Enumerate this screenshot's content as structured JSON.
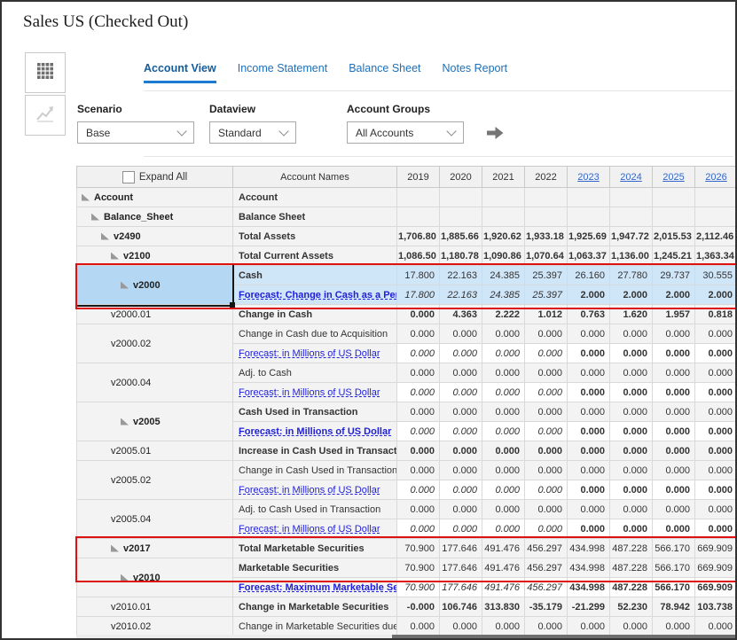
{
  "title": "Sales US (Checked Out)",
  "sidebar": {
    "items": [
      {
        "icon": "grid-view-icon",
        "active": true
      },
      {
        "icon": "chart-view-icon",
        "active": false
      }
    ]
  },
  "tabs": [
    {
      "label": "Account View",
      "active": true
    },
    {
      "label": "Income Statement",
      "active": false
    },
    {
      "label": "Balance Sheet",
      "active": false
    },
    {
      "label": "Notes Report",
      "active": false
    }
  ],
  "filters": {
    "scenario": {
      "label": "Scenario",
      "value": "Base"
    },
    "dataview": {
      "label": "Dataview",
      "value": "Standard"
    },
    "account_groups": {
      "label": "Account Groups",
      "value": "All Accounts"
    }
  },
  "table": {
    "expand_all_label": "Expand All",
    "account_names_header": "Account Names",
    "years": [
      {
        "label": "2019",
        "link": false
      },
      {
        "label": "2020",
        "link": false
      },
      {
        "label": "2021",
        "link": false
      },
      {
        "label": "2022",
        "link": false
      },
      {
        "label": "2023",
        "link": true
      },
      {
        "label": "2024",
        "link": true
      },
      {
        "label": "2025",
        "link": true
      },
      {
        "label": "2026",
        "link": true
      }
    ],
    "rows": [
      {
        "id": "Account",
        "name": "Account",
        "indent": 0,
        "expandable": true,
        "id_bold": true,
        "name_bold": true,
        "values": null,
        "styles": null
      },
      {
        "id": "Balance_Sheet",
        "name": "Balance Sheet",
        "indent": 1,
        "expandable": true,
        "id_bold": true,
        "name_bold": true,
        "values": null,
        "styles": null
      },
      {
        "id": "v2490",
        "name": "Total Assets",
        "indent": 2,
        "expandable": true,
        "id_bold": true,
        "name_bold": true,
        "values": [
          "1,706.80",
          "1,885.66",
          "1,920.62",
          "1,933.18",
          "1,925.69",
          "1,947.72",
          "2,015.53",
          "2,112.46"
        ],
        "styles": "bbbbbbbb"
      },
      {
        "id": "v2100",
        "name": "Total Current Assets",
        "indent": 3,
        "expandable": true,
        "id_bold": true,
        "name_bold": true,
        "values": [
          "1,086.50",
          "1,180.78",
          "1,090.86",
          "1,070.64",
          "1,063.37",
          "1,136.00",
          "1,245.21",
          "1,363.34"
        ],
        "styles": "bbbbbbbb"
      },
      {
        "id": "v2000",
        "name": "Cash",
        "indent": 4,
        "expandable": true,
        "id_bold": true,
        "name_bold": true,
        "selected": true,
        "tree_span": 2,
        "values": [
          "17.800",
          "22.163",
          "24.385",
          "25.397",
          "26.160",
          "27.780",
          "29.737",
          "30.555"
        ],
        "styles": "gggggggg"
      },
      {
        "name": "Forecast: Change in Cash as a Perce",
        "link": true,
        "name_bold": true,
        "forecast": true,
        "selected": true,
        "skip_tree": true,
        "values": [
          "17.800",
          "22.163",
          "24.385",
          "25.397",
          "2.000",
          "2.000",
          "2.000",
          "2.000"
        ],
        "styles": "GGGGbbbb"
      },
      {
        "id": "v2000.01",
        "name": "Change in Cash",
        "indent": 3,
        "expandable": false,
        "id_bold": false,
        "name_bold": true,
        "values": [
          "0.000",
          "4.363",
          "2.222",
          "1.012",
          "0.763",
          "1.620",
          "1.957",
          "0.818"
        ],
        "styles": "bbbbbbbb"
      },
      {
        "id": "v2000.02",
        "name": "Change in Cash due to Acquisition",
        "indent": 3,
        "expandable": false,
        "tree_span": 2,
        "values": [
          "0.000",
          "0.000",
          "0.000",
          "0.000",
          "0.000",
          "0.000",
          "0.000",
          "0.000"
        ],
        "styles": "gggggggg"
      },
      {
        "name": "Forecast: in Millions of US Dollar",
        "link": true,
        "forecast": true,
        "skip_tree": true,
        "values": [
          "0.000",
          "0.000",
          "0.000",
          "0.000",
          "0.000",
          "0.000",
          "0.000",
          "0.000"
        ],
        "styles": "GGGGbbbb"
      },
      {
        "id": "v2000.04",
        "name": "Adj. to Cash",
        "indent": 3,
        "expandable": false,
        "tree_span": 2,
        "values": [
          "0.000",
          "0.000",
          "0.000",
          "0.000",
          "0.000",
          "0.000",
          "0.000",
          "0.000"
        ],
        "styles": "gggggggg"
      },
      {
        "name": "Forecast: in Millions of US Dollar",
        "link": true,
        "forecast": true,
        "skip_tree": true,
        "values": [
          "0.000",
          "0.000",
          "0.000",
          "0.000",
          "0.000",
          "0.000",
          "0.000",
          "0.000"
        ],
        "styles": "GGGGbbbb"
      },
      {
        "id": "v2005",
        "name": "Cash Used in Transaction",
        "indent": 4,
        "expandable": true,
        "id_bold": true,
        "name_bold": true,
        "tree_span": 2,
        "values": [
          "0.000",
          "0.000",
          "0.000",
          "0.000",
          "0.000",
          "0.000",
          "0.000",
          "0.000"
        ],
        "styles": "gggggggg"
      },
      {
        "name": "Forecast: in Millions of US Dollar",
        "link": true,
        "name_bold": true,
        "forecast": true,
        "skip_tree": true,
        "values": [
          "0.000",
          "0.000",
          "0.000",
          "0.000",
          "0.000",
          "0.000",
          "0.000",
          "0.000"
        ],
        "styles": "GGGGbbbb"
      },
      {
        "id": "v2005.01",
        "name": "Increase in Cash Used in Transaction",
        "indent": 3,
        "expandable": false,
        "name_bold": true,
        "values": [
          "0.000",
          "0.000",
          "0.000",
          "0.000",
          "0.000",
          "0.000",
          "0.000",
          "0.000"
        ],
        "styles": "bbbbbbbb"
      },
      {
        "id": "v2005.02",
        "name": "Change in Cash Used in Transaction (",
        "indent": 3,
        "expandable": false,
        "tree_span": 2,
        "values": [
          "0.000",
          "0.000",
          "0.000",
          "0.000",
          "0.000",
          "0.000",
          "0.000",
          "0.000"
        ],
        "styles": "gggggggg"
      },
      {
        "name": "Forecast: in Millions of US Dollar",
        "link": true,
        "forecast": true,
        "skip_tree": true,
        "values": [
          "0.000",
          "0.000",
          "0.000",
          "0.000",
          "0.000",
          "0.000",
          "0.000",
          "0.000"
        ],
        "styles": "GGGGbbbb"
      },
      {
        "id": "v2005.04",
        "name": "Adj. to Cash Used in Transaction",
        "indent": 3,
        "expandable": false,
        "tree_span": 2,
        "values": [
          "0.000",
          "0.000",
          "0.000",
          "0.000",
          "0.000",
          "0.000",
          "0.000",
          "0.000"
        ],
        "styles": "gggggggg"
      },
      {
        "name": "Forecast: in Millions of US Dollar",
        "link": true,
        "forecast": true,
        "skip_tree": true,
        "values": [
          "0.000",
          "0.000",
          "0.000",
          "0.000",
          "0.000",
          "0.000",
          "0.000",
          "0.000"
        ],
        "styles": "GGGGbbbb"
      },
      {
        "id": "v2017",
        "name": "Total Marketable Securities",
        "indent": 3,
        "expandable": true,
        "id_bold": true,
        "name_bold": true,
        "values": [
          "70.900",
          "177.646",
          "491.476",
          "456.297",
          "434.998",
          "487.228",
          "566.170",
          "669.909"
        ],
        "styles": "gggggggg"
      },
      {
        "id": "v2010",
        "name": "Marketable Securities",
        "indent": 4,
        "expandable": true,
        "id_bold": true,
        "name_bold": true,
        "tree_span": 2,
        "values": [
          "70.900",
          "177.646",
          "491.476",
          "456.297",
          "434.998",
          "487.228",
          "566.170",
          "669.909"
        ],
        "styles": "gggggggg"
      },
      {
        "name": "Forecast: Maximum Marketable Secu",
        "link": true,
        "name_bold": true,
        "forecast": true,
        "skip_tree": true,
        "values": [
          "70.900",
          "177.646",
          "491.476",
          "456.297",
          "434.998",
          "487.228",
          "566.170",
          "669.909"
        ],
        "styles": "GGGGbbbb"
      },
      {
        "id": "v2010.01",
        "name": "Change in Marketable Securities",
        "indent": 3,
        "expandable": false,
        "name_bold": true,
        "values": [
          "-0.000",
          "106.746",
          "313.830",
          "-35.179",
          "-21.299",
          "52.230",
          "78.942",
          "103.738"
        ],
        "styles": "rbbrrbbb"
      },
      {
        "id": "v2010.02",
        "name": "Change in Marketable Securities due t",
        "indent": 3,
        "expandable": false,
        "values": [
          "0.000",
          "0.000",
          "0.000",
          "0.000",
          "0.000",
          "0.000",
          "0.000",
          "0.000"
        ],
        "styles": "gggggggg"
      }
    ]
  },
  "colors": {
    "tab_accent": "#1d7ad1",
    "link_blue": "#1f1fd8",
    "year_link_blue": "#3366cc",
    "forecast_green": "#5cdf5c",
    "negative_red": "#e80000",
    "selected_row_blue": "#cfe5f8",
    "selected_cell_blue": "#b4d7f4",
    "annotation_red": "#dd1111"
  }
}
